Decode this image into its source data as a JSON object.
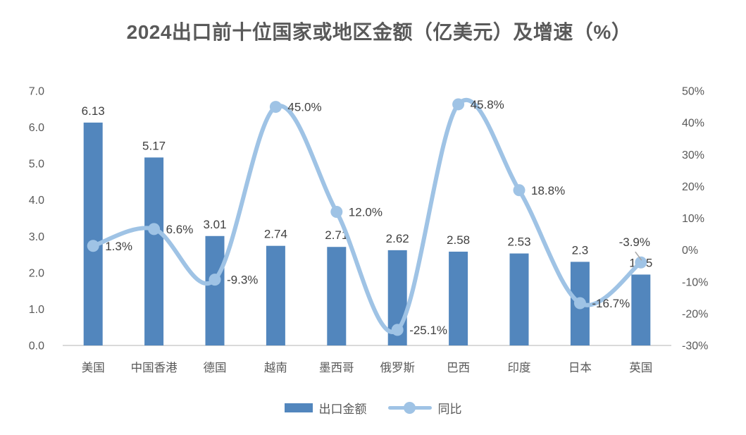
{
  "title": "2024出口前十位国家或地区金额（亿美元）及增速（%）",
  "colors": {
    "bar": "#5286BD",
    "line": "#9FC3E5",
    "axis_text": "#595959",
    "data_label_text": "#404040",
    "baseline": "#D9D9D9",
    "leader_line": "#A6A6A6",
    "title_text": "#595959",
    "background": "#FFFFFF"
  },
  "chart_data": {
    "type": "bar",
    "subtype": "combo-bar-line-dual-axis",
    "title": "2024出口前十位国家或地区金额（亿美元）及增速（%）",
    "categories": [
      "美国",
      "中国香港",
      "德国",
      "越南",
      "墨西哥",
      "俄罗斯",
      "巴西",
      "印度",
      "日本",
      "英国"
    ],
    "series": [
      {
        "name": "出口金额",
        "type": "bar",
        "axis": "left",
        "values": [
          6.13,
          5.17,
          3.01,
          2.74,
          2.71,
          2.62,
          2.58,
          2.53,
          2.3,
          1.95
        ],
        "labels": [
          "6.13",
          "5.17",
          "3.01",
          "2.74",
          "2.71",
          "2.62",
          "2.58",
          "2.53",
          "2.3",
          "1.95"
        ]
      },
      {
        "name": "同比",
        "type": "line",
        "axis": "right",
        "values": [
          1.3,
          6.6,
          -9.3,
          45.0,
          12.0,
          -25.1,
          45.8,
          18.8,
          -16.7,
          -3.9
        ],
        "labels": [
          "1.3%",
          "6.6%",
          "-9.3%",
          "45.0%",
          "12.0%",
          "-25.1%",
          "45.8%",
          "18.8%",
          "-16.7%",
          "-3.9%"
        ]
      }
    ],
    "left_axis": {
      "min": 0,
      "max": 7,
      "ticks": [
        "7.0",
        "6.0",
        "5.0",
        "4.0",
        "3.0",
        "2.0",
        "1.0",
        "0.0"
      ]
    },
    "right_axis": {
      "min": -30,
      "max": 50,
      "ticks": [
        "50%",
        "40%",
        "30%",
        "20%",
        "10%",
        "0%",
        "-10%",
        "-20%",
        "-30%"
      ]
    },
    "grid": "off",
    "legend_position": "bottom",
    "legend": [
      "出口金额",
      "同比"
    ]
  }
}
